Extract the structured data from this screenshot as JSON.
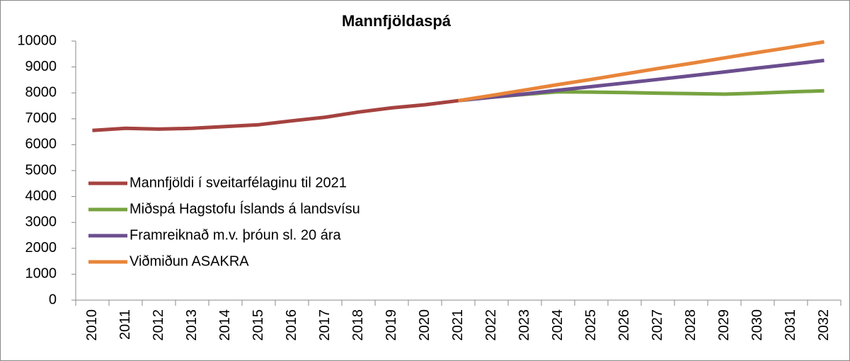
{
  "chart_data": {
    "type": "line",
    "title": "Mannfjöldaspá",
    "categories": [
      "2010",
      "2011",
      "2012",
      "2013",
      "2014",
      "2015",
      "2016",
      "2017",
      "2018",
      "2019",
      "2020",
      "2021",
      "2022",
      "2023",
      "2024",
      "2025",
      "2026",
      "2027",
      "2028",
      "2029",
      "2030",
      "2031",
      "2032"
    ],
    "series": [
      {
        "name": "Mannfjöldi í sveitarfélaginu til 2021",
        "color": "#a5423f",
        "values": [
          6550,
          6630,
          6600,
          6630,
          6700,
          6770,
          6920,
          7060,
          7260,
          7420,
          7540,
          7700,
          null,
          null,
          null,
          null,
          null,
          null,
          null,
          null,
          null,
          null,
          null
        ]
      },
      {
        "name": "Miðspá Hagstofu Íslands á landsvísu",
        "color": "#77a340",
        "values": [
          null,
          null,
          null,
          null,
          null,
          null,
          null,
          null,
          null,
          null,
          null,
          7700,
          7830,
          7940,
          8040,
          8030,
          8010,
          7990,
          7970,
          7950,
          7990,
          8040,
          8080
        ]
      },
      {
        "name": "Framreiknað m.v. þróun sl. 20 ára",
        "color": "#6b4e8f",
        "values": [
          null,
          null,
          null,
          null,
          null,
          null,
          null,
          null,
          null,
          null,
          null,
          7700,
          7830,
          7960,
          8100,
          8240,
          8380,
          8520,
          8660,
          8810,
          8960,
          9100,
          9250
        ]
      },
      {
        "name": "Viðmiðun ASAKRA",
        "color": "#e8853a",
        "values": [
          null,
          null,
          null,
          null,
          null,
          null,
          null,
          null,
          null,
          null,
          null,
          7700,
          7900,
          8110,
          8320,
          8520,
          8730,
          8940,
          9140,
          9350,
          9560,
          9760,
          9970
        ]
      }
    ],
    "ylim": [
      0,
      10000
    ],
    "yticks": [
      0,
      1000,
      2000,
      3000,
      4000,
      5000,
      6000,
      7000,
      8000,
      9000,
      10000
    ],
    "grid": false,
    "legend": "lower-left"
  }
}
